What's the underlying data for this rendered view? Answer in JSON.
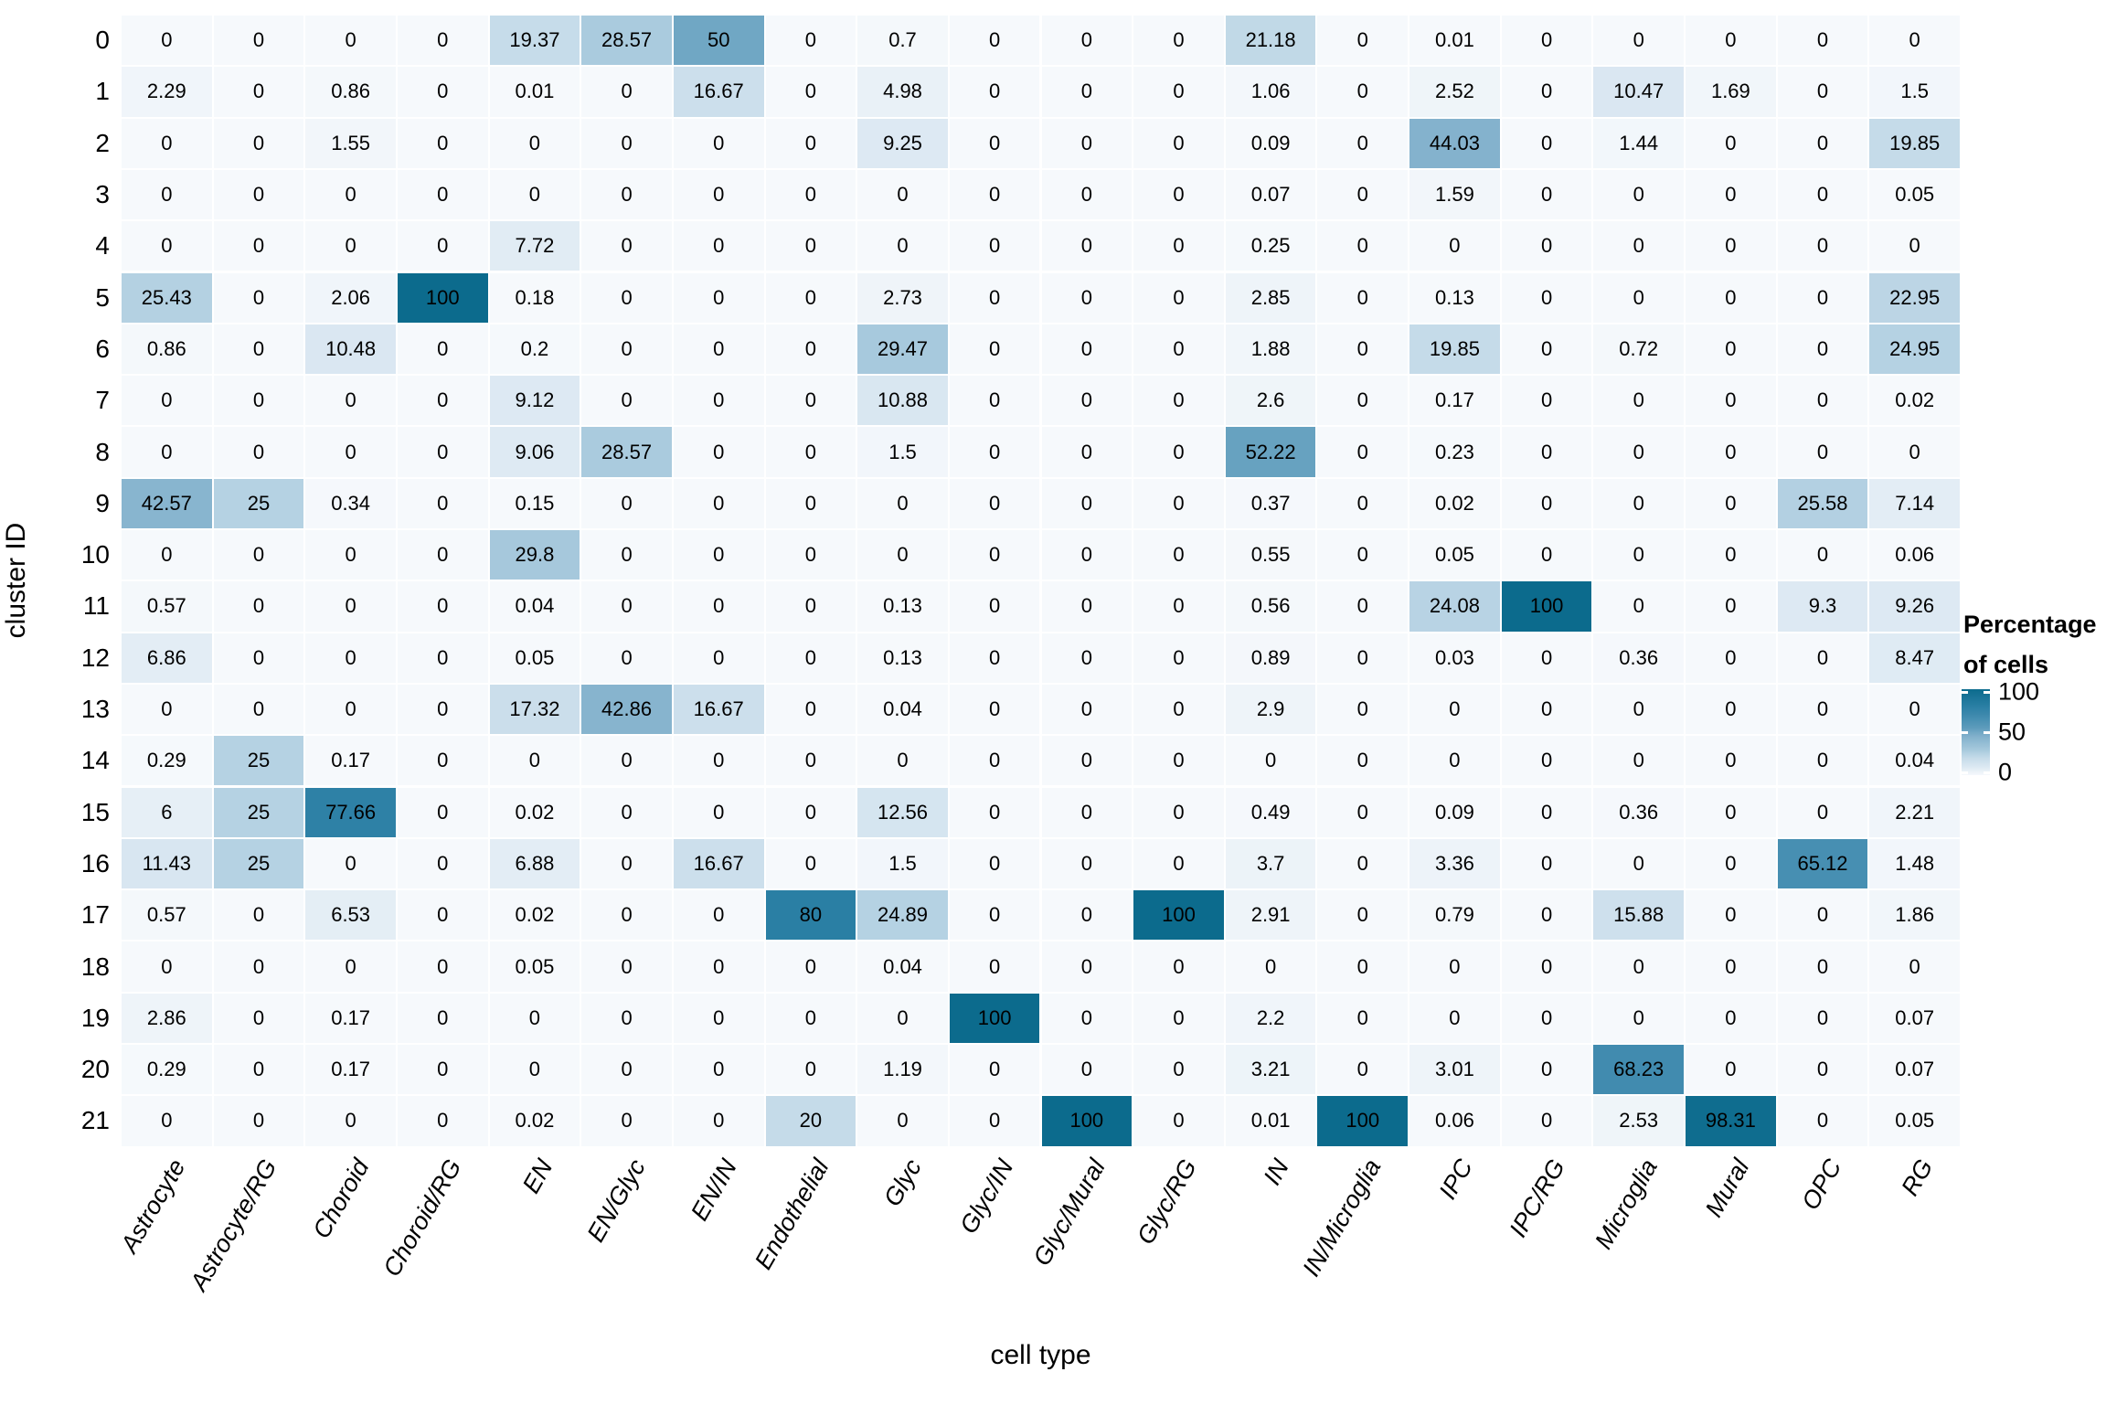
{
  "figure": {
    "x_axis_title": "cell type",
    "y_axis_title": "cluster ID"
  },
  "legend": {
    "title_line1": "Percentage",
    "title_line2": "of cells",
    "ticks": [
      "100",
      "50",
      "0"
    ]
  },
  "chart_data": {
    "type": "heatmap",
    "title": "",
    "xlabel": "cell type",
    "ylabel": "cluster ID",
    "legend_title": "Percentage of cells",
    "value_range": [
      0,
      100
    ],
    "legend_tick_values": [
      100,
      50,
      0
    ],
    "grid_color": "#ffffff",
    "text_color": "#000000",
    "color_scale": {
      "low": "#f6f9fc",
      "high": "#0c6b8d",
      "stops": [
        [
          0,
          "#f6f9fc"
        ],
        [
          10,
          "#dbe8f2"
        ],
        [
          20,
          "#c5dbe9"
        ],
        [
          30,
          "#a5c8dc"
        ],
        [
          45,
          "#82b1cc"
        ],
        [
          55,
          "#5d9cbc"
        ],
        [
          70,
          "#3d89ad"
        ],
        [
          80,
          "#2a7fa4"
        ],
        [
          100,
          "#0c6b8d"
        ]
      ]
    },
    "x_categories": [
      "Astrocyte",
      "Astrocyte/RG",
      "Choroid",
      "Choroid/RG",
      "EN",
      "EN/Glyc",
      "EN/IN",
      "Endothelial",
      "Glyc",
      "Glyc/IN",
      "Glyc/Mural",
      "Glyc/RG",
      "IN",
      "IN/Microglia",
      "IPC",
      "IPC/RG",
      "Microglia",
      "Mural",
      "OPC",
      "RG"
    ],
    "y_categories": [
      "0",
      "1",
      "2",
      "3",
      "4",
      "5",
      "6",
      "7",
      "8",
      "9",
      "10",
      "11",
      "12",
      "13",
      "14",
      "15",
      "16",
      "17",
      "18",
      "19",
      "20",
      "21"
    ],
    "values": [
      [
        "0",
        "0",
        "0",
        "0",
        "19.37",
        "28.57",
        "50",
        "0",
        "0.7",
        "0",
        "0",
        "0",
        "21.18",
        "0",
        "0.01",
        "0",
        "0",
        "0",
        "0",
        "0"
      ],
      [
        "2.29",
        "0",
        "0.86",
        "0",
        "0.01",
        "0",
        "16.67",
        "0",
        "4.98",
        "0",
        "0",
        "0",
        "1.06",
        "0",
        "2.52",
        "0",
        "10.47",
        "1.69",
        "0",
        "1.5"
      ],
      [
        "0",
        "0",
        "1.55",
        "0",
        "0",
        "0",
        "0",
        "0",
        "9.25",
        "0",
        "0",
        "0",
        "0.09",
        "0",
        "44.03",
        "0",
        "1.44",
        "0",
        "0",
        "19.85"
      ],
      [
        "0",
        "0",
        "0",
        "0",
        "0",
        "0",
        "0",
        "0",
        "0",
        "0",
        "0",
        "0",
        "0.07",
        "0",
        "1.59",
        "0",
        "0",
        "0",
        "0",
        "0.05"
      ],
      [
        "0",
        "0",
        "0",
        "0",
        "7.72",
        "0",
        "0",
        "0",
        "0",
        "0",
        "0",
        "0",
        "0.25",
        "0",
        "0",
        "0",
        "0",
        "0",
        "0",
        "0"
      ],
      [
        "25.43",
        "0",
        "2.06",
        "100",
        "0.18",
        "0",
        "0",
        "0",
        "2.73",
        "0",
        "0",
        "0",
        "2.85",
        "0",
        "0.13",
        "0",
        "0",
        "0",
        "0",
        "22.95"
      ],
      [
        "0.86",
        "0",
        "10.48",
        "0",
        "0.2",
        "0",
        "0",
        "0",
        "29.47",
        "0",
        "0",
        "0",
        "1.88",
        "0",
        "19.85",
        "0",
        "0.72",
        "0",
        "0",
        "24.95"
      ],
      [
        "0",
        "0",
        "0",
        "0",
        "9.12",
        "0",
        "0",
        "0",
        "10.88",
        "0",
        "0",
        "0",
        "2.6",
        "0",
        "0.17",
        "0",
        "0",
        "0",
        "0",
        "0.02"
      ],
      [
        "0",
        "0",
        "0",
        "0",
        "9.06",
        "28.57",
        "0",
        "0",
        "1.5",
        "0",
        "0",
        "0",
        "52.22",
        "0",
        "0.23",
        "0",
        "0",
        "0",
        "0",
        "0"
      ],
      [
        "42.57",
        "25",
        "0.34",
        "0",
        "0.15",
        "0",
        "0",
        "0",
        "0",
        "0",
        "0",
        "0",
        "0.37",
        "0",
        "0.02",
        "0",
        "0",
        "0",
        "25.58",
        "7.14"
      ],
      [
        "0",
        "0",
        "0",
        "0",
        "29.8",
        "0",
        "0",
        "0",
        "0",
        "0",
        "0",
        "0",
        "0.55",
        "0",
        "0.05",
        "0",
        "0",
        "0",
        "0",
        "0.06"
      ],
      [
        "0.57",
        "0",
        "0",
        "0",
        "0.04",
        "0",
        "0",
        "0",
        "0.13",
        "0",
        "0",
        "0",
        "0.56",
        "0",
        "24.08",
        "100",
        "0",
        "0",
        "9.3",
        "9.26"
      ],
      [
        "6.86",
        "0",
        "0",
        "0",
        "0.05",
        "0",
        "0",
        "0",
        "0.13",
        "0",
        "0",
        "0",
        "0.89",
        "0",
        "0.03",
        "0",
        "0.36",
        "0",
        "0",
        "8.47"
      ],
      [
        "0",
        "0",
        "0",
        "0",
        "17.32",
        "42.86",
        "16.67",
        "0",
        "0.04",
        "0",
        "0",
        "0",
        "2.9",
        "0",
        "0",
        "0",
        "0",
        "0",
        "0",
        "0"
      ],
      [
        "0.29",
        "25",
        "0.17",
        "0",
        "0",
        "0",
        "0",
        "0",
        "0",
        "0",
        "0",
        "0",
        "0",
        "0",
        "0",
        "0",
        "0",
        "0",
        "0",
        "0.04"
      ],
      [
        "6",
        "25",
        "77.66",
        "0",
        "0.02",
        "0",
        "0",
        "0",
        "12.56",
        "0",
        "0",
        "0",
        "0.49",
        "0",
        "0.09",
        "0",
        "0.36",
        "0",
        "0",
        "2.21"
      ],
      [
        "11.43",
        "25",
        "0",
        "0",
        "6.88",
        "0",
        "16.67",
        "0",
        "1.5",
        "0",
        "0",
        "0",
        "3.7",
        "0",
        "3.36",
        "0",
        "0",
        "0",
        "65.12",
        "1.48"
      ],
      [
        "0.57",
        "0",
        "6.53",
        "0",
        "0.02",
        "0",
        "0",
        "80",
        "24.89",
        "0",
        "0",
        "100",
        "2.91",
        "0",
        "0.79",
        "0",
        "15.88",
        "0",
        "0",
        "1.86"
      ],
      [
        "0",
        "0",
        "0",
        "0",
        "0.05",
        "0",
        "0",
        "0",
        "0.04",
        "0",
        "0",
        "0",
        "0",
        "0",
        "0",
        "0",
        "0",
        "0",
        "0",
        "0"
      ],
      [
        "2.86",
        "0",
        "0.17",
        "0",
        "0",
        "0",
        "0",
        "0",
        "0",
        "100",
        "0",
        "0",
        "2.2",
        "0",
        "0",
        "0",
        "0",
        "0",
        "0",
        "0.07"
      ],
      [
        "0.29",
        "0",
        "0.17",
        "0",
        "0",
        "0",
        "0",
        "0",
        "1.19",
        "0",
        "0",
        "0",
        "3.21",
        "0",
        "3.01",
        "0",
        "68.23",
        "0",
        "0",
        "0.07"
      ],
      [
        "0",
        "0",
        "0",
        "0",
        "0.02",
        "0",
        "0",
        "20",
        "0",
        "0",
        "100",
        "0",
        "0.01",
        "100",
        "0.06",
        "0",
        "2.53",
        "98.31",
        "0",
        "0.05"
      ]
    ]
  }
}
